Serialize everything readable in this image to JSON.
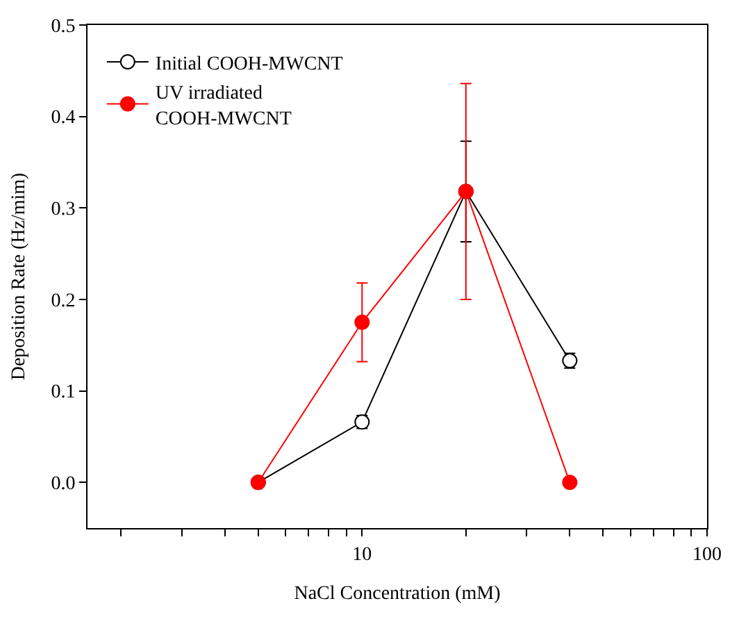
{
  "chart_data": {
    "type": "line",
    "xlabel": "NaCl Concentration (mM)",
    "ylabel": "Deposition Rate (Hz/mim)",
    "x": [
      5,
      10,
      20,
      40
    ],
    "series": [
      {
        "name": "Initial COOH-MWCNT",
        "color": "#000000",
        "values": [
          0,
          0.066,
          0.318,
          0.133
        ],
        "errors": [
          null,
          0.007,
          0.055,
          0.008
        ]
      },
      {
        "name": "UV irradiated COOH-MWCNT",
        "color": "#ff0000",
        "values": [
          0,
          0.175,
          0.318,
          0
        ],
        "errors": [
          null,
          0.043,
          0.118,
          null
        ]
      }
    ],
    "log": "x",
    "xlim": [
      1.6,
      100
    ],
    "xticks": [
      {
        "value": 2,
        "label": null
      },
      {
        "value": 3,
        "label": null
      },
      {
        "value": 4,
        "label": null
      },
      {
        "value": 5,
        "label": null
      },
      {
        "value": 6,
        "label": null
      },
      {
        "value": 7,
        "label": null
      },
      {
        "value": 8,
        "label": null
      },
      {
        "value": 9,
        "label": null
      },
      10,
      {
        "value": 20,
        "label": null
      },
      {
        "value": 30,
        "label": null
      },
      {
        "value": 40,
        "label": null
      },
      {
        "value": 50,
        "label": null
      },
      {
        "value": 60,
        "label": null
      },
      {
        "value": 70,
        "label": null
      },
      {
        "value": 80,
        "label": null
      },
      {
        "value": 90,
        "label": null
      },
      100
    ],
    "ylim": [
      -0.05,
      0.5
    ],
    "yticks": [
      {
        "value": 0,
        "label": "0.0"
      },
      {
        "value": 0.1,
        "label": "0.1"
      },
      {
        "value": 0.2,
        "label": "0.2"
      },
      {
        "value": 0.3,
        "label": "0.3"
      },
      {
        "value": 0.4,
        "label": "0.4"
      },
      {
        "value": 0.5,
        "label": "0.5"
      }
    ],
    "legend": "top left",
    "marker": "circle",
    "line_style": "solid"
  }
}
